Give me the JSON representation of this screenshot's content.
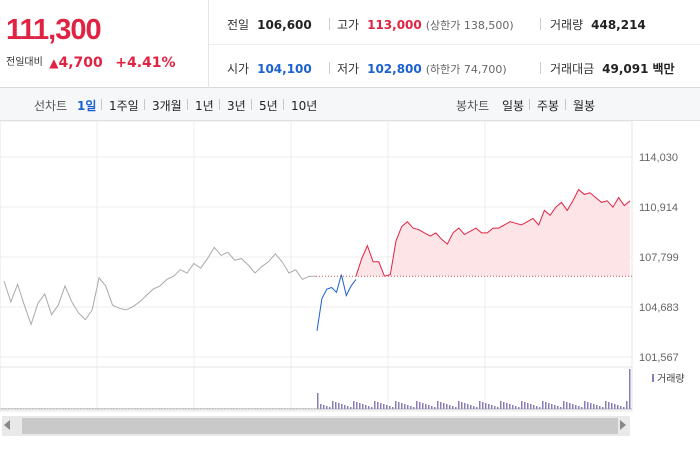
{
  "quote": {
    "price": "111,300",
    "change_label": "전일대비",
    "change_icon": "up-triangle-icon",
    "change_value": "4,700",
    "change_pct": "+4.41%",
    "up_color": "#e12343",
    "down_color": "#1b61d1"
  },
  "stats": {
    "prev_close_label": "전일",
    "prev_close": "106,600",
    "high_label": "고가",
    "high": "113,000",
    "upper_limit": "(상한가 138,500)",
    "volume_label": "거래량",
    "volume": "448,214",
    "open_label": "시가",
    "open": "104,100",
    "low_label": "저가",
    "low": "102,800",
    "lower_limit": "(하한가 74,700)",
    "value_label": "거래대금",
    "value": "49,091",
    "value_unit": "백만"
  },
  "toolbar": {
    "line_label": "선차트",
    "line_periods": [
      "1일",
      "1주일",
      "3개월",
      "1년",
      "3년",
      "5년",
      "10년"
    ],
    "line_active": "1일",
    "candle_label": "봉차트",
    "candle_periods": [
      "일봉",
      "주봉",
      "월봉"
    ]
  },
  "chart_data": {
    "type": "line",
    "title": "",
    "y_ticks": [
      "114,030",
      "110,914",
      "107,799",
      "104,683",
      "101,567"
    ],
    "ylim": [
      101567,
      114030
    ],
    "reference_line": 106600,
    "volume_label": "거래량",
    "series": [
      {
        "name": "",
        "color": "#aaaaaa",
        "values": [
          106300,
          105000,
          106100,
          104800,
          103600,
          104900,
          105500,
          104200,
          104800,
          106000,
          105000,
          104300,
          103900,
          104500,
          106500,
          106000,
          104800,
          104600,
          104500,
          104700,
          105000,
          105400,
          105800,
          106000,
          106400,
          106600,
          107000,
          106800,
          107400,
          107100,
          107700,
          108400,
          107900,
          108100,
          107600,
          107700,
          107300,
          106800,
          107200,
          107500,
          108000,
          107500,
          106800,
          107000,
          106400,
          106600,
          106600
        ]
      },
      {
        "name": "",
        "color": "#1b61d1",
        "values": [
          103200,
          105200,
          105800,
          105900,
          105600,
          106700,
          105400,
          106000,
          106400
        ]
      },
      {
        "name": "",
        "color": "#e12343",
        "values": [
          106600,
          107700,
          108500,
          107500,
          107500,
          106600,
          106700,
          108800,
          109700,
          110000,
          109600,
          109500,
          109300,
          109100,
          109300,
          108900,
          108600,
          109300,
          109600,
          109200,
          109400,
          109600,
          109300,
          109300,
          109600,
          109600,
          109800,
          110000,
          109900,
          109800,
          110000,
          110200,
          109800,
          110700,
          110400,
          110900,
          111200,
          110700,
          111300,
          112000,
          111700,
          111800,
          111500,
          111200,
          111300,
          110900,
          111500,
          111000,
          111300
        ]
      }
    ]
  }
}
